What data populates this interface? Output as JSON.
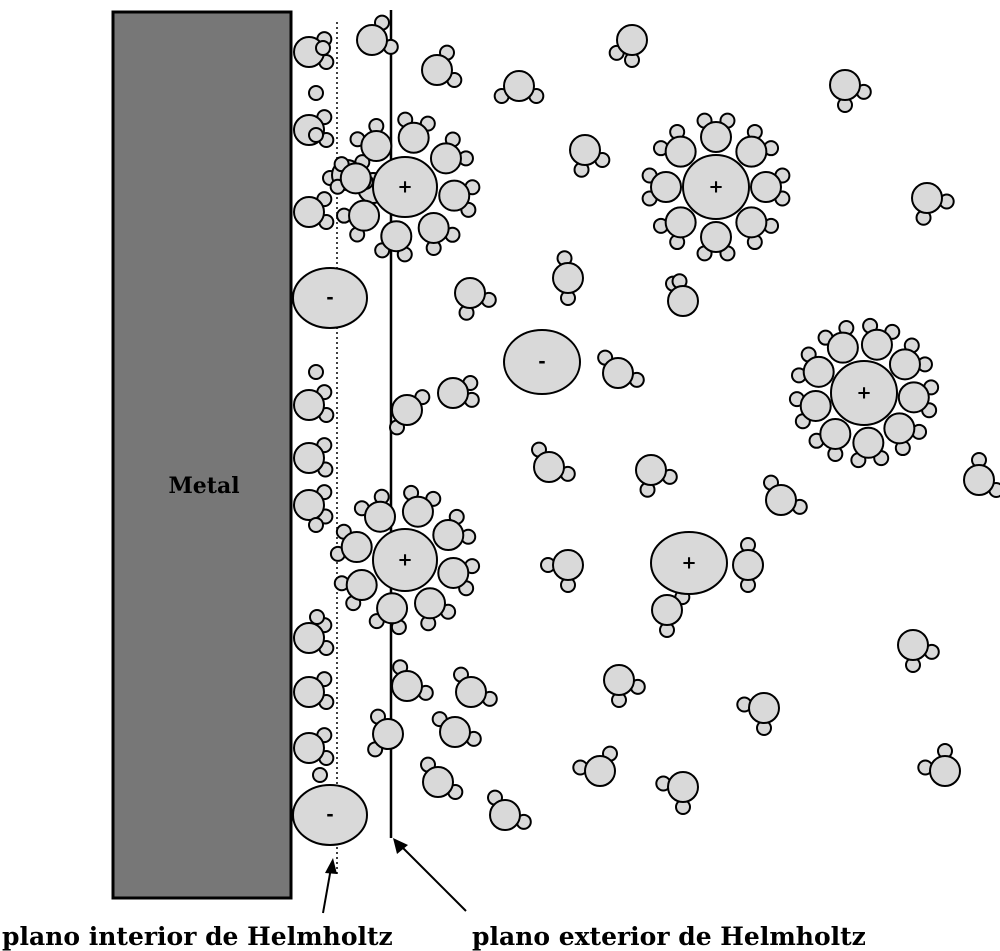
{
  "metal": {
    "label": "Metal",
    "fill": "#777777"
  },
  "planes": {
    "inner": {
      "label": "plano interior de Helmholtz"
    },
    "outer": {
      "label": "plano exterior de Helmholtz"
    }
  },
  "ions": {
    "cation_sign": "+",
    "anion_sign": "-",
    "fill": "#d9d9d9"
  },
  "water": {
    "fill": "#d9d9d9",
    "stroke": "#000000"
  }
}
